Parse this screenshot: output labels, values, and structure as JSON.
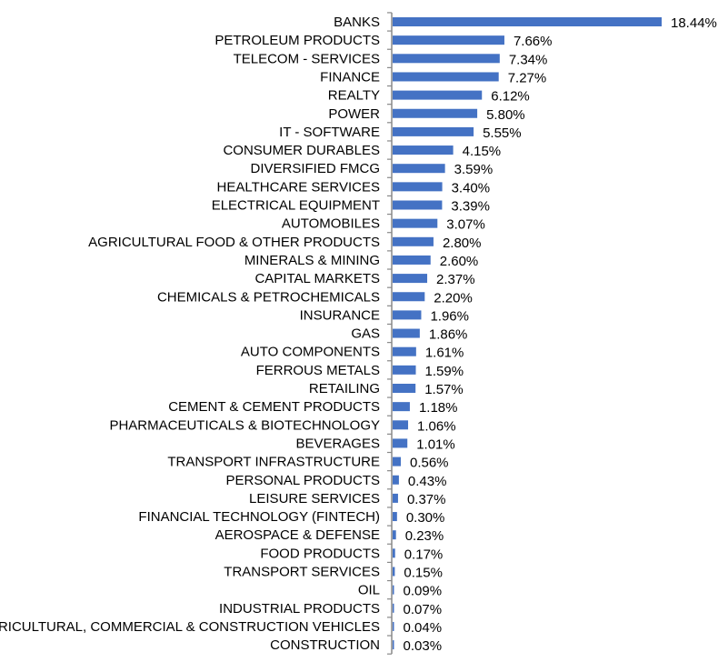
{
  "chart_data": {
    "type": "bar",
    "orientation": "horizontal",
    "title": "",
    "xlabel": "",
    "ylabel": "",
    "xlim": [
      0,
      18.44
    ],
    "grid": false,
    "legend": "none",
    "bar_color": "#4472C4",
    "axis_color": "#888888",
    "categories": [
      "BANKS",
      "PETROLEUM PRODUCTS",
      "TELECOM - SERVICES",
      "FINANCE",
      "REALTY",
      "POWER",
      "IT - SOFTWARE",
      "CONSUMER DURABLES",
      "DIVERSIFIED FMCG",
      "HEALTHCARE SERVICES",
      "ELECTRICAL EQUIPMENT",
      "AUTOMOBILES",
      "AGRICULTURAL FOOD & OTHER PRODUCTS",
      "MINERALS & MINING",
      "CAPITAL MARKETS",
      "CHEMICALS & PETROCHEMICALS",
      "INSURANCE",
      "GAS",
      "AUTO COMPONENTS",
      "FERROUS METALS",
      "RETAILING",
      "CEMENT & CEMENT PRODUCTS",
      "PHARMACEUTICALS & BIOTECHNOLOGY",
      "BEVERAGES",
      "TRANSPORT INFRASTRUCTURE",
      "PERSONAL PRODUCTS",
      "LEISURE SERVICES",
      "FINANCIAL TECHNOLOGY (FINTECH)",
      "AEROSPACE & DEFENSE",
      "FOOD PRODUCTS",
      "TRANSPORT SERVICES",
      "OIL",
      "INDUSTRIAL PRODUCTS",
      "AGRICULTURAL, COMMERCIAL & CONSTRUCTION VEHICLES",
      "CONSTRUCTION"
    ],
    "values": [
      18.44,
      7.66,
      7.34,
      7.27,
      6.12,
      5.8,
      5.55,
      4.15,
      3.59,
      3.4,
      3.39,
      3.07,
      2.8,
      2.6,
      2.37,
      2.2,
      1.96,
      1.86,
      1.61,
      1.59,
      1.57,
      1.18,
      1.06,
      1.01,
      0.56,
      0.43,
      0.37,
      0.3,
      0.23,
      0.17,
      0.15,
      0.09,
      0.07,
      0.04,
      0.03
    ],
    "value_labels": [
      "18.44%",
      "7.66%",
      "7.34%",
      "7.27%",
      "6.12%",
      "5.80%",
      "5.55%",
      "4.15%",
      "3.59%",
      "3.40%",
      "3.39%",
      "3.07%",
      "2.80%",
      "2.60%",
      "2.37%",
      "2.20%",
      "1.96%",
      "1.86%",
      "1.61%",
      "1.59%",
      "1.57%",
      "1.18%",
      "1.06%",
      "1.01%",
      "0.56%",
      "0.43%",
      "0.37%",
      "0.30%",
      "0.23%",
      "0.17%",
      "0.15%",
      "0.09%",
      "0.07%",
      "0.04%",
      "0.03%"
    ]
  }
}
